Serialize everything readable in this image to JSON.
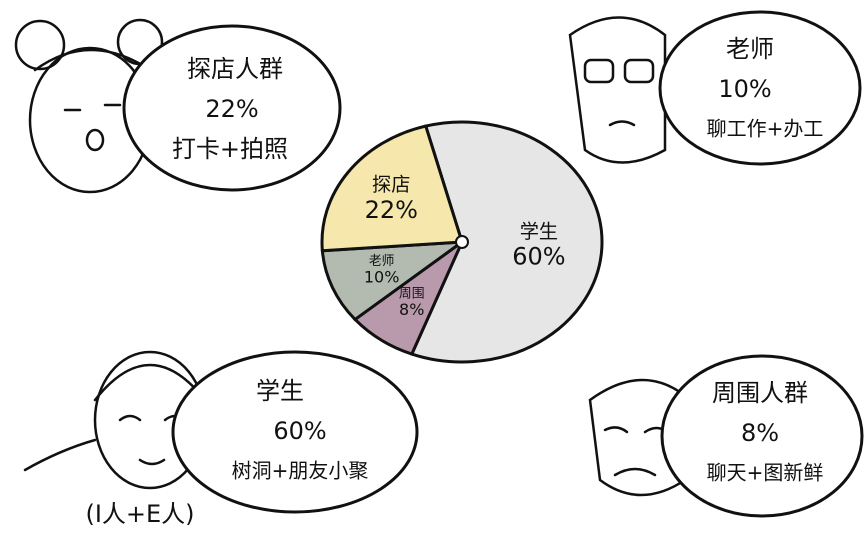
{
  "chart_data": {
    "type": "pie",
    "categories": [
      "学生",
      "周围",
      "老师",
      "探店"
    ],
    "values": [
      60,
      8,
      10,
      22
    ],
    "value_labels": [
      "60%",
      "8%",
      "10%",
      "22%"
    ],
    "colors": [
      "#e6e6e6",
      "#b99aac",
      "#b3bbb0",
      "#f6e7ac"
    ]
  },
  "callouts": [
    {
      "group": "探店人群",
      "share": "22%",
      "activity": "打卡+拍照"
    },
    {
      "group": "老师",
      "share": "10%",
      "activity": "聊工作+办工"
    },
    {
      "group": "学生",
      "share": "60%",
      "activity": "树洞+朋友小聚"
    },
    {
      "group": "周围人群",
      "share": "8%",
      "activity": "聊天+图新鲜"
    }
  ],
  "note": "(I人+E人)"
}
